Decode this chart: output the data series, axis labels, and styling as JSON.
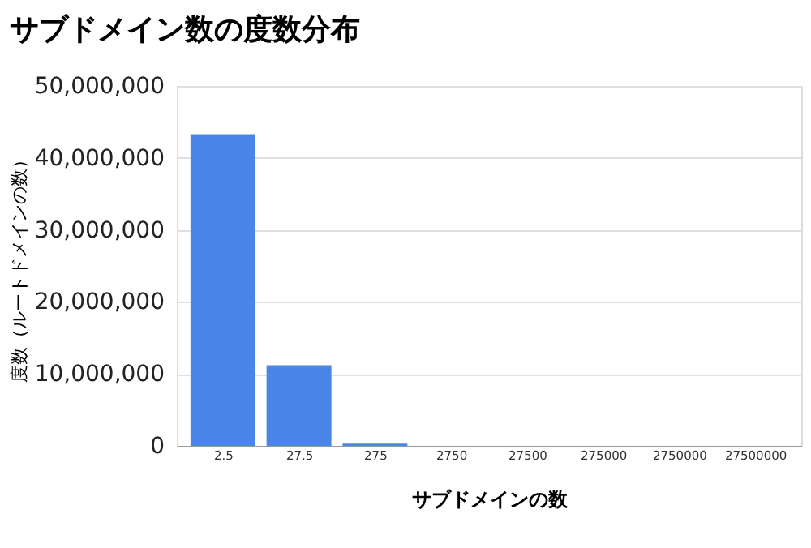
{
  "chart_data": {
    "type": "bar",
    "title": "サブドメイン数の度数分布",
    "xlabel": "サブドメインの数",
    "ylabel": "度数（ルートドメインの数）",
    "categories": [
      "2.5",
      "27.5",
      "275",
      "2750",
      "27500",
      "275000",
      "2750000",
      "27500000"
    ],
    "values": [
      43300000,
      11200000,
      300000,
      0,
      0,
      0,
      0,
      0
    ],
    "color": "#4a86e8",
    "ylim": [
      0,
      50000000
    ],
    "yticks": [
      0,
      {
        "value": 10000000,
        "label": "10,000,000"
      },
      {
        "value": 20000000,
        "label": "20,000,000"
      },
      {
        "value": 30000000,
        "label": "30,000,000"
      },
      {
        "value": 40000000,
        "label": "40,000,000"
      },
      {
        "value": 50000000,
        "label": "50,000,000"
      }
    ],
    "grid": "y"
  }
}
